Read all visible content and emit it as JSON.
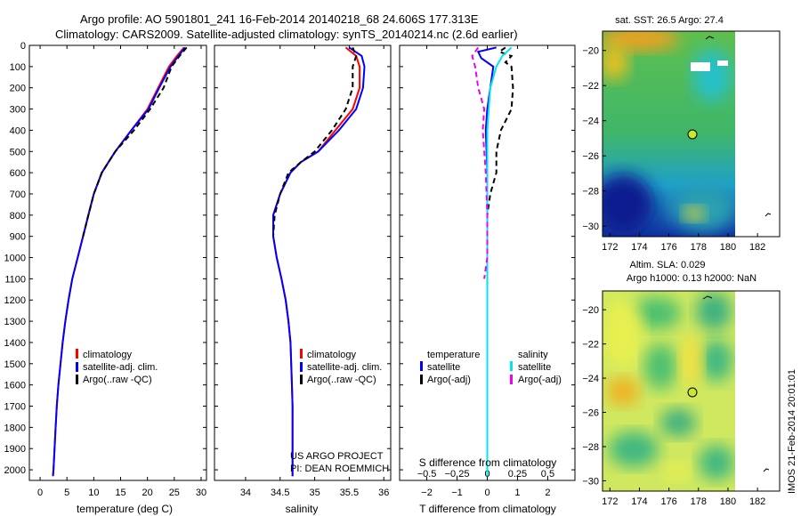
{
  "header": {
    "line1": "Argo profile: AO 5901801_241 16-Feb-2014 20140218_68 24.606S 177.313E",
    "line2": "Climatology: CARS2009. Satellite-adjusted climatology: synTS_20140214.nc (2.6d earlier)"
  },
  "colors": {
    "climatology": "#ff0000",
    "satellite": "#0000ff",
    "argo": "#000000",
    "sal_satellite": "#00e5ee",
    "sal_argo": "#ee00ee",
    "axis": "#000000"
  },
  "credits": {
    "line1": "US ARGO PROJECT",
    "line2": "PI: DEAN ROEMMICH"
  },
  "stamp": "IMOS 21-Feb-2014 20:01:01",
  "chart_data": [
    {
      "type": "line",
      "xlabel": "temperature (deg C)",
      "ylabel": "",
      "xlim": [
        -2,
        31
      ],
      "ylim": [
        2050,
        0
      ],
      "xticks": [
        0,
        5,
        10,
        15,
        20,
        25,
        30
      ],
      "yticks": [
        0,
        100,
        200,
        300,
        400,
        500,
        600,
        700,
        800,
        900,
        1000,
        1100,
        1200,
        1300,
        1400,
        1500,
        1600,
        1700,
        1800,
        1900,
        2000
      ],
      "legend": [
        "climatology",
        "satellite-adj. clim.",
        "Argo(..raw -QC)"
      ],
      "series": [
        {
          "name": "climatology",
          "color": "climatology",
          "dash": "",
          "points": [
            [
              26.8,
              10
            ],
            [
              25.5,
              50
            ],
            [
              24,
              100
            ],
            [
              22,
              200
            ],
            [
              20,
              300
            ],
            [
              17,
              400
            ],
            [
              14,
              500
            ],
            [
              11.5,
              600
            ],
            [
              10,
              700
            ],
            [
              9,
              800
            ],
            [
              8,
              900
            ],
            [
              7,
              1000
            ],
            [
              6,
              1100
            ],
            [
              5.3,
              1200
            ],
            [
              4.7,
              1300
            ],
            [
              4.2,
              1400
            ],
            [
              3.8,
              1500
            ],
            [
              3.4,
              1600
            ],
            [
              3.1,
              1700
            ],
            [
              2.9,
              1800
            ],
            [
              2.7,
              1900
            ],
            [
              2.5,
              2000
            ],
            [
              2.4,
              2030
            ]
          ]
        },
        {
          "name": "satellite-adj. clim.",
          "color": "satellite",
          "dash": "",
          "points": [
            [
              27,
              10
            ],
            [
              25.8,
              50
            ],
            [
              24.3,
              100
            ],
            [
              22.2,
              200
            ],
            [
              20.2,
              300
            ],
            [
              17,
              400
            ],
            [
              14,
              500
            ],
            [
              11.5,
              600
            ],
            [
              10,
              700
            ],
            [
              9,
              800
            ],
            [
              8,
              900
            ],
            [
              7,
              1000
            ],
            [
              6,
              1100
            ],
            [
              5.3,
              1200
            ],
            [
              4.7,
              1300
            ],
            [
              4.2,
              1400
            ],
            [
              3.8,
              1500
            ],
            [
              3.4,
              1600
            ],
            [
              3.1,
              1700
            ],
            [
              2.9,
              1800
            ],
            [
              2.7,
              1900
            ],
            [
              2.5,
              2000
            ],
            [
              2.4,
              2030
            ]
          ]
        },
        {
          "name": "Argo(..raw -QC)",
          "color": "argo",
          "dash": "6,4",
          "points": [
            [
              27.3,
              10
            ],
            [
              26,
              50
            ],
            [
              24.5,
              100
            ],
            [
              23,
              200
            ],
            [
              20.5,
              300
            ],
            [
              17.5,
              400
            ],
            [
              14,
              500
            ],
            [
              11.5,
              600
            ],
            [
              10,
              700
            ],
            [
              9,
              800
            ],
            [
              8,
              900
            ]
          ]
        }
      ]
    },
    {
      "type": "line",
      "xlabel": "salinity",
      "ylabel": "",
      "xlim": [
        33.55,
        36.1
      ],
      "ylim": [
        2050,
        0
      ],
      "xticks": [
        34,
        34.5,
        35,
        35.5,
        36
      ],
      "legend": [
        "climatology",
        "satellite-adj. clim.",
        "Argo(..raw -QC)"
      ],
      "series": [
        {
          "name": "climatology",
          "color": "climatology",
          "dash": "",
          "points": [
            [
              35.45,
              10
            ],
            [
              35.6,
              50
            ],
            [
              35.65,
              100
            ],
            [
              35.65,
              200
            ],
            [
              35.55,
              300
            ],
            [
              35.3,
              400
            ],
            [
              35.05,
              500
            ],
            [
              34.8,
              550
            ],
            [
              34.65,
              600
            ],
            [
              34.5,
              700
            ],
            [
              34.4,
              800
            ],
            [
              34.4,
              900
            ],
            [
              34.45,
              1000
            ],
            [
              34.52,
              1100
            ],
            [
              34.58,
              1200
            ],
            [
              34.62,
              1300
            ],
            [
              34.65,
              1400
            ],
            [
              34.66,
              1500
            ],
            [
              34.67,
              1600
            ],
            [
              34.68,
              1700
            ],
            [
              34.68,
              1800
            ],
            [
              34.68,
              1900
            ],
            [
              34.68,
              2000
            ],
            [
              34.68,
              2030
            ]
          ]
        },
        {
          "name": "satellite-adj. clim.",
          "color": "satellite",
          "dash": "",
          "points": [
            [
              35.5,
              10
            ],
            [
              35.68,
              50
            ],
            [
              35.72,
              100
            ],
            [
              35.7,
              200
            ],
            [
              35.6,
              300
            ],
            [
              35.35,
              400
            ],
            [
              35.05,
              500
            ],
            [
              34.8,
              550
            ],
            [
              34.65,
              600
            ],
            [
              34.5,
              700
            ],
            [
              34.4,
              800
            ],
            [
              34.4,
              900
            ],
            [
              34.45,
              1000
            ],
            [
              34.52,
              1100
            ],
            [
              34.58,
              1200
            ],
            [
              34.62,
              1300
            ],
            [
              34.65,
              1400
            ],
            [
              34.66,
              1500
            ],
            [
              34.67,
              1600
            ],
            [
              34.68,
              1700
            ],
            [
              34.68,
              1800
            ],
            [
              34.68,
              1900
            ],
            [
              34.68,
              2000
            ],
            [
              34.68,
              2030
            ]
          ]
        },
        {
          "name": "Argo(..raw -QC)",
          "color": "argo",
          "dash": "6,4",
          "points": [
            [
              35.55,
              10
            ],
            [
              35.6,
              50
            ],
            [
              35.55,
              100
            ],
            [
              35.55,
              200
            ],
            [
              35.45,
              300
            ],
            [
              35.25,
              400
            ],
            [
              35,
              500
            ],
            [
              34.8,
              550
            ],
            [
              34.62,
              600
            ],
            [
              34.5,
              700
            ],
            [
              34.42,
              800
            ],
            [
              34.4,
              900
            ]
          ]
        }
      ]
    },
    {
      "type": "line",
      "xlabel": "T difference from climatology",
      "xlabel_top": "S difference from climatology",
      "ylabel": "",
      "xlim": [
        -2.9,
        2.9
      ],
      "ylim": [
        2050,
        0
      ],
      "xticks": [
        -2,
        -1,
        0,
        1,
        2
      ],
      "xticks_top": [
        -0.5,
        -0.25,
        0,
        0.25,
        0.5
      ],
      "legend_temperature": {
        "title": "temperature",
        "items": [
          "satellite",
          "Argo(-adj)"
        ]
      },
      "legend_salinity": {
        "title": "salinity",
        "items": [
          "satellite",
          "Argo(-adj)"
        ]
      },
      "series": [
        {
          "name": "temperature satellite",
          "color": "satellite",
          "dash": "",
          "points": [
            [
              0.3,
              10
            ],
            [
              -0.3,
              30
            ],
            [
              -0.2,
              60
            ],
            [
              0.2,
              100
            ],
            [
              0.1,
              200
            ],
            [
              0,
              300
            ],
            [
              -0.05,
              400
            ],
            [
              0,
              600
            ],
            [
              0,
              800
            ],
            [
              0,
              1000
            ],
            [
              0,
              1200
            ],
            [
              0,
              1500
            ],
            [
              0,
              2030
            ]
          ]
        },
        {
          "name": "temperature Argo(-adj)",
          "color": "argo",
          "dash": "6,4",
          "points": [
            [
              0.6,
              10
            ],
            [
              0.4,
              30
            ],
            [
              0.8,
              50
            ],
            [
              0.6,
              80
            ],
            [
              0.8,
              100
            ],
            [
              0.85,
              200
            ],
            [
              0.8,
              300
            ],
            [
              0.45,
              400
            ],
            [
              0.3,
              500
            ],
            [
              0.3,
              600
            ],
            [
              0.1,
              700
            ],
            [
              0,
              800
            ],
            [
              0,
              900
            ]
          ]
        },
        {
          "name": "salinity satellite",
          "color": "sal_satellite",
          "dash": "",
          "points": [
            [
              0.8,
              10
            ],
            [
              0.5,
              50
            ],
            [
              0.3,
              100
            ],
            [
              0.1,
              200
            ],
            [
              0,
              400
            ],
            [
              0,
              700
            ],
            [
              0,
              1000
            ],
            [
              0,
              1500
            ],
            [
              0,
              2030
            ]
          ]
        },
        {
          "name": "salinity Argo(-adj)",
          "color": "sal_argo",
          "dash": "6,4",
          "points": [
            [
              -0.3,
              10
            ],
            [
              -0.5,
              50
            ],
            [
              -0.4,
              100
            ],
            [
              -0.3,
              200
            ],
            [
              -0.1,
              300
            ],
            [
              -0.15,
              400
            ],
            [
              -0.05,
              600
            ],
            [
              0,
              800
            ],
            [
              0,
              1000
            ],
            [
              -0.1,
              1100
            ]
          ]
        }
      ]
    },
    {
      "type": "heatmap",
      "title": "sat. SST: 26.5 Argo: 27.4",
      "xlim": [
        171.5,
        183.5
      ],
      "ylim": [
        -30.6,
        -18.9
      ],
      "xticks": [
        172,
        174,
        176,
        178,
        180,
        182
      ],
      "yticks": [
        -20,
        -22,
        -24,
        -26,
        -28,
        -30
      ],
      "marker": {
        "lon": 177.313,
        "lat": -24.606
      }
    },
    {
      "type": "heatmap",
      "title": "Altim. SLA: 0.029",
      "subtitle": "Argo h1000: 0.13 h2000: NaN",
      "xlim": [
        171.5,
        183.5
      ],
      "ylim": [
        -30.6,
        -18.9
      ],
      "xticks": [
        172,
        174,
        176,
        178,
        180,
        182
      ],
      "yticks": [
        -20,
        -22,
        -24,
        -26,
        -28,
        -30
      ],
      "marker": {
        "lon": 177.313,
        "lat": -24.606
      }
    }
  ]
}
